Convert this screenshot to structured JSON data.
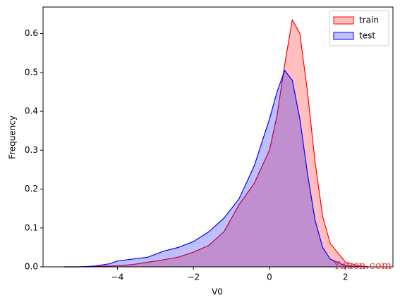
{
  "chart_data": {
    "type": "kde",
    "xlabel": "V0",
    "ylabel": "Frequency",
    "x": [
      -5.4,
      -5,
      -4.6,
      -4.2,
      -4,
      -3.6,
      -3.2,
      -2.8,
      -2.4,
      -2,
      -1.6,
      -1.2,
      -0.8,
      -0.4,
      0,
      0.2,
      0.4,
      0.6,
      0.8,
      1,
      1.2,
      1.4,
      1.6,
      2,
      2.4,
      2.6
    ],
    "series": [
      {
        "name": "train",
        "color": "#ff0000",
        "values": [
          0,
          0,
          0.001,
          0.002,
          0.003,
          0.006,
          0.012,
          0.018,
          0.025,
          0.038,
          0.055,
          0.09,
          0.16,
          0.215,
          0.3,
          0.39,
          0.52,
          0.635,
          0.6,
          0.45,
          0.27,
          0.13,
          0.06,
          0.012,
          0.002,
          0
        ]
      },
      {
        "name": "test",
        "color": "#0000ff",
        "values": [
          0,
          0,
          0.002,
          0.008,
          0.015,
          0.02,
          0.025,
          0.04,
          0.05,
          0.065,
          0.09,
          0.125,
          0.175,
          0.26,
          0.38,
          0.45,
          0.505,
          0.48,
          0.38,
          0.24,
          0.12,
          0.05,
          0.02,
          0.003,
          0,
          0
        ]
      }
    ],
    "xlim": [
      -5.96,
      3.25
    ],
    "ylim": [
      0,
      0.668
    ],
    "xticks": [
      {
        "value": -4,
        "label": "−4"
      },
      {
        "value": -2,
        "label": "−2"
      },
      0,
      2
    ],
    "yticks": [
      {
        "value": 0,
        "label": "0.0"
      },
      0.1,
      0.2,
      0.3,
      0.4,
      0.5,
      0.6
    ],
    "legend": "upper right",
    "annotation": "Yuucn.com"
  }
}
